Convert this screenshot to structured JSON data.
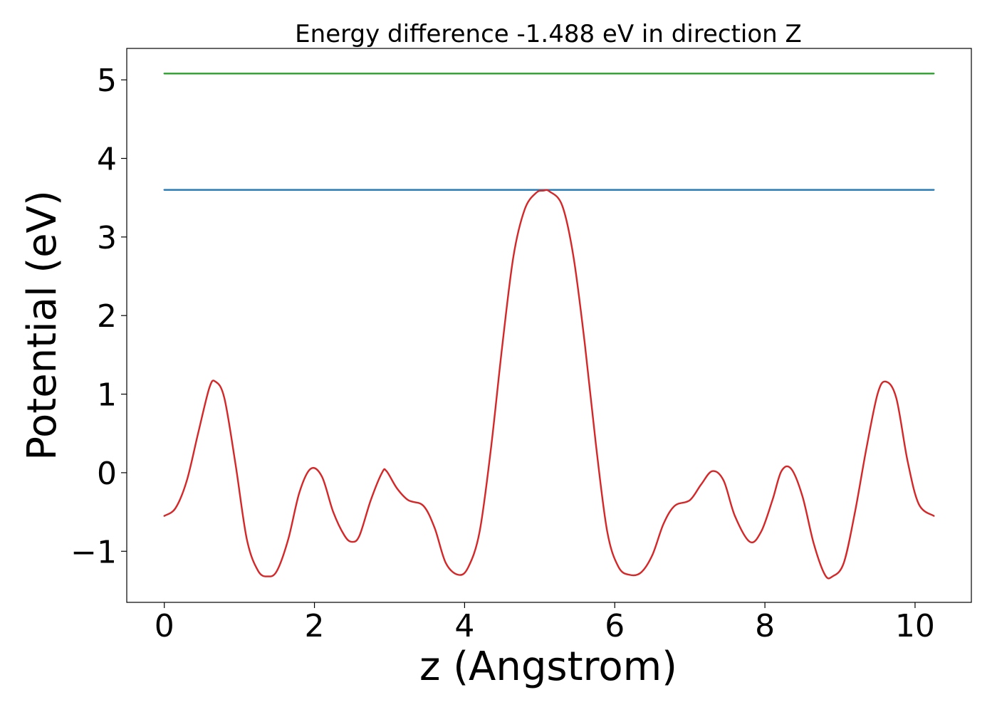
{
  "chart_data": {
    "type": "line",
    "title": "Energy difference -1.488 eV in direction Z",
    "xlabel": "z (Angstrom)",
    "ylabel": "Potential (eV)",
    "xlim": [
      -0.5,
      10.75
    ],
    "ylim": [
      -1.65,
      5.4
    ],
    "x_ticks": [
      0,
      2,
      4,
      6,
      8,
      10
    ],
    "x_tick_labels": [
      "0",
      "2",
      "4",
      "6",
      "8",
      "10"
    ],
    "y_ticks": [
      -1,
      0,
      1,
      2,
      3,
      4,
      5
    ],
    "y_tick_labels": [
      "−1",
      "0",
      "1",
      "2",
      "3",
      "4",
      "5"
    ],
    "grid": false,
    "series": [
      {
        "color": "#d62728",
        "x": [
          0.0,
          0.15,
          0.3,
          0.45,
          0.6,
          0.68,
          0.8,
          0.95,
          1.1,
          1.25,
          1.38,
          1.5,
          1.65,
          1.8,
          1.95,
          2.1,
          2.25,
          2.4,
          2.5,
          2.6,
          2.75,
          2.9,
          2.96,
          3.1,
          3.25,
          3.45,
          3.6,
          3.75,
          3.92,
          4.05,
          4.2,
          4.35,
          4.5,
          4.65,
          4.8,
          4.95,
          5.05,
          5.13,
          5.3,
          5.45,
          5.6,
          5.75,
          5.9,
          6.05,
          6.2,
          6.35,
          6.5,
          6.65,
          6.8,
          7.0,
          7.15,
          7.3,
          7.45,
          7.6,
          7.8,
          7.95,
          8.1,
          8.22,
          8.35,
          8.5,
          8.65,
          8.8,
          8.9,
          9.05,
          9.2,
          9.35,
          9.5,
          9.61,
          9.75,
          9.9,
          10.05,
          10.25
        ],
        "y": [
          -0.55,
          -0.45,
          -0.1,
          0.5,
          1.08,
          1.16,
          0.95,
          0.1,
          -0.85,
          -1.25,
          -1.32,
          -1.25,
          -0.85,
          -0.25,
          0.05,
          -0.05,
          -0.5,
          -0.8,
          -0.88,
          -0.8,
          -0.35,
          0.0,
          0.02,
          -0.2,
          -0.35,
          -0.42,
          -0.7,
          -1.15,
          -1.3,
          -1.2,
          -0.75,
          0.3,
          1.6,
          2.75,
          3.35,
          3.56,
          3.59,
          3.58,
          3.4,
          2.75,
          1.65,
          0.35,
          -0.75,
          -1.2,
          -1.3,
          -1.27,
          -1.05,
          -0.65,
          -0.42,
          -0.35,
          -0.15,
          0.02,
          -0.1,
          -0.55,
          -0.88,
          -0.75,
          -0.35,
          0.02,
          0.05,
          -0.3,
          -0.9,
          -1.3,
          -1.32,
          -1.15,
          -0.5,
          0.3,
          1.0,
          1.16,
          0.95,
          0.15,
          -0.4,
          -0.55
        ]
      },
      {
        "color": "#1f77b4",
        "x": [
          0.0,
          10.25
        ],
        "y": [
          3.6,
          3.6
        ]
      },
      {
        "color": "#2ca02c",
        "x": [
          0.0,
          10.25
        ],
        "y": [
          5.08,
          5.08
        ]
      }
    ]
  }
}
